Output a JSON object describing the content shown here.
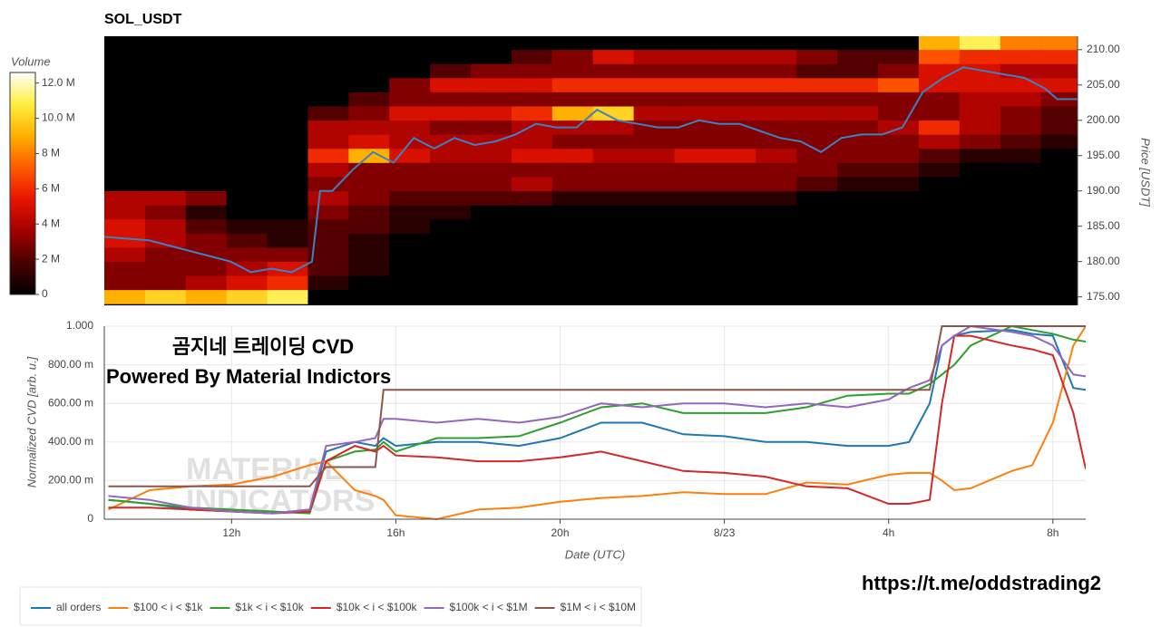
{
  "chart_data": [
    {
      "type": "heatmap",
      "title": "SOL_USDT",
      "y_label": "Price [USDT]",
      "colorbar_label": "Volume",
      "xlim": [
        8.9,
        32.8
      ],
      "ylim": [
        173.8,
        211.9
      ],
      "yticks": [
        {
          "value": 175,
          "label": "175.00"
        },
        {
          "value": 180,
          "label": "180.00"
        },
        {
          "value": 185,
          "label": "185.00"
        },
        {
          "value": 190,
          "label": "190.00"
        },
        {
          "value": 195,
          "label": "195.00"
        },
        {
          "value": 200,
          "label": "200.00"
        },
        {
          "value": 205,
          "label": "205.00"
        },
        {
          "value": 210,
          "label": "210.00"
        }
      ],
      "clim": [
        0,
        12.6
      ],
      "cticks": [
        0,
        {
          "value": 2,
          "label": "2 M"
        },
        {
          "value": 4,
          "label": "4 M"
        },
        {
          "value": 6,
          "label": "6 M"
        },
        {
          "value": 8,
          "label": "8 M"
        },
        {
          "value": 10,
          "label": "10.0 M"
        },
        {
          "value": 12,
          "label": "12.0 M"
        }
      ],
      "colorscale": [
        "#000000",
        "#4a0000",
        "#a00000",
        "#e81400",
        "#ff5a00",
        "#ffb000",
        "#ffee40",
        "#ffffff"
      ],
      "x_bins": [
        8.9,
        9.9,
        10.9,
        11.9,
        12.9,
        13.9,
        14.9,
        15.9,
        16.9,
        17.9,
        18.9,
        19.9,
        20.9,
        21.9,
        22.9,
        23.9,
        24.9,
        25.9,
        26.9,
        27.9,
        28.9,
        29.9,
        30.9,
        31.9,
        32.8
      ],
      "y_bins": [
        174,
        176,
        178,
        180,
        182,
        184,
        186,
        188,
        190,
        192,
        194,
        196,
        198,
        200,
        202,
        204,
        206,
        208,
        210,
        212
      ],
      "z": [
        [
          9,
          10,
          9,
          10,
          11,
          0,
          0,
          0,
          0,
          0,
          0,
          0,
          0,
          0,
          0,
          0,
          0,
          0,
          0,
          0,
          0,
          0,
          0,
          0
        ],
        [
          3,
          3,
          4,
          5,
          6,
          1,
          0,
          0,
          0,
          0,
          0,
          0,
          0,
          0,
          0,
          0,
          0,
          0,
          0,
          0,
          0,
          0,
          0,
          0
        ],
        [
          3,
          3,
          3,
          4,
          5,
          2,
          1,
          0,
          0,
          0,
          0,
          0,
          0,
          0,
          0,
          0,
          0,
          0,
          0,
          0,
          0,
          0,
          0,
          0
        ],
        [
          4,
          3,
          3,
          3,
          3,
          2,
          1,
          0,
          0,
          0,
          0,
          0,
          0,
          0,
          0,
          0,
          0,
          0,
          0,
          0,
          0,
          0,
          0,
          0
        ],
        [
          5,
          4,
          3,
          2,
          1,
          2,
          1,
          0,
          0,
          0,
          0,
          0,
          0,
          0,
          0,
          0,
          0,
          0,
          0,
          0,
          0,
          0,
          0,
          0
        ],
        [
          5,
          4,
          2,
          1,
          1,
          2,
          2,
          1,
          0,
          0,
          0,
          0,
          0,
          0,
          0,
          0,
          0,
          0,
          0,
          0,
          0,
          0,
          0,
          0
        ],
        [
          4,
          3,
          1,
          0,
          0,
          3,
          2,
          1,
          1,
          0,
          0,
          0,
          0,
          0,
          0,
          0,
          0,
          0,
          0,
          0,
          0,
          0,
          0,
          0
        ],
        [
          4,
          4,
          3,
          0,
          0,
          4,
          3,
          2,
          2,
          2,
          2,
          1,
          1,
          1,
          1,
          1,
          1,
          0,
          0,
          0,
          0,
          0,
          0,
          0
        ],
        [
          0,
          0,
          0,
          0,
          0,
          3,
          3,
          3,
          3,
          3,
          4,
          3,
          3,
          3,
          3,
          3,
          3,
          2,
          1,
          1,
          0,
          0,
          0,
          0
        ],
        [
          0,
          0,
          0,
          0,
          0,
          4,
          3,
          3,
          3,
          3,
          3,
          3,
          3,
          3,
          3,
          3,
          3,
          3,
          2,
          2,
          1,
          0,
          0,
          0
        ],
        [
          0,
          0,
          0,
          0,
          0,
          6,
          9,
          5,
          4,
          4,
          5,
          5,
          4,
          4,
          5,
          5,
          4,
          3,
          3,
          3,
          2,
          1,
          1,
          0
        ],
        [
          0,
          0,
          0,
          0,
          0,
          4,
          5,
          4,
          4,
          4,
          4,
          3,
          3,
          3,
          3,
          3,
          3,
          3,
          3,
          3,
          4,
          3,
          2,
          1
        ],
        [
          0,
          0,
          0,
          0,
          0,
          4,
          4,
          4,
          3,
          3,
          4,
          4,
          4,
          3,
          3,
          3,
          3,
          3,
          3,
          4,
          6,
          4,
          3,
          2
        ],
        [
          0,
          0,
          0,
          0,
          0,
          2,
          3,
          5,
          5,
          5,
          6,
          9,
          10,
          4,
          4,
          4,
          4,
          4,
          4,
          3,
          3,
          4,
          3,
          2
        ],
        [
          0,
          0,
          0,
          0,
          0,
          0,
          2,
          3,
          3,
          3,
          3,
          3,
          3,
          3,
          3,
          3,
          3,
          3,
          3,
          3,
          3,
          4,
          4,
          3
        ],
        [
          0,
          0,
          0,
          0,
          0,
          0,
          0,
          3,
          5,
          5,
          5,
          6,
          6,
          6,
          6,
          6,
          6,
          6,
          6,
          7,
          5,
          5,
          5,
          5
        ],
        [
          0,
          0,
          0,
          0,
          0,
          0,
          0,
          0,
          2,
          3,
          3,
          3,
          3,
          3,
          3,
          3,
          3,
          2,
          2,
          3,
          5,
          5,
          4,
          4
        ],
        [
          0,
          0,
          0,
          0,
          0,
          0,
          0,
          0,
          0,
          0,
          2,
          3,
          5,
          4,
          4,
          4,
          4,
          3,
          2,
          2,
          7,
          6,
          6,
          6
        ],
        [
          0,
          0,
          0,
          0,
          0,
          0,
          0,
          0,
          0,
          0,
          0,
          0,
          0,
          0,
          0,
          0,
          0,
          0,
          0,
          0,
          9,
          11,
          8,
          8
        ]
      ],
      "series": [
        {
          "color": "#3b82c4",
          "x": [
            8.9,
            10,
            11,
            12,
            12.5,
            13,
            13.5,
            14,
            14.2,
            14.5,
            15,
            15.5,
            16,
            16.5,
            17,
            17.5,
            18,
            18.5,
            19,
            19.5,
            20,
            20.5,
            21,
            21.5,
            22,
            22.5,
            23,
            23.5,
            24,
            24.5,
            25,
            25.5,
            26,
            26.5,
            27,
            27.5,
            28,
            28.5,
            29,
            29.5,
            30,
            30.5,
            31,
            31.5,
            32,
            32.3,
            32.8
          ],
          "values": [
            183.5,
            183,
            181.5,
            180,
            178.5,
            179,
            178.5,
            180,
            190,
            190,
            193,
            195.5,
            194,
            197.5,
            196,
            197.5,
            196.5,
            197,
            198,
            199.5,
            199,
            199,
            201.5,
            200,
            199.5,
            199,
            199,
            200,
            199.5,
            199.5,
            198.5,
            197.5,
            197,
            195.5,
            197.5,
            198,
            198,
            199,
            204,
            206,
            207.5,
            207,
            206.5,
            206,
            204.5,
            203,
            203
          ]
        }
      ]
    },
    {
      "type": "line",
      "x_label": "Date (UTC)",
      "y_label": "Normalized CVD [arb. u.]",
      "xlim": [
        8.9,
        32.8
      ],
      "ylim": [
        0,
        1
      ],
      "grid": true,
      "xticks": [
        {
          "value": 12,
          "label": "12h"
        },
        {
          "value": 16,
          "label": "16h"
        },
        {
          "value": 20,
          "label": "20h"
        },
        {
          "value": 24,
          "label": "8/23"
        },
        {
          "value": 28,
          "label": "4h"
        },
        {
          "value": 32,
          "label": "8h"
        }
      ],
      "yticks": [
        0,
        {
          "value": 0.2,
          "label": "200.00 m"
        },
        {
          "value": 0.4,
          "label": "400.00 m"
        },
        {
          "value": 0.6,
          "label": "600.00 m"
        },
        {
          "value": 0.8,
          "label": "800.00 m"
        },
        {
          "value": 1,
          "label": "1.000"
        }
      ],
      "annotations": [
        "곰지네 트레이딩 CVD",
        "Powered By Material Indictors",
        "https://t.me/oddstrading2"
      ],
      "watermark": [
        "MATERIAL",
        "INDICATORS"
      ],
      "x": [
        9,
        10,
        11,
        12,
        13,
        13.9,
        14.3,
        15,
        15.5,
        15.7,
        16,
        17,
        18,
        19,
        20,
        21,
        22,
        23,
        24,
        25,
        26,
        27,
        28,
        28.5,
        29,
        29.3,
        29.6,
        30,
        31,
        31.5,
        32,
        32.5,
        32.8
      ],
      "series": [
        {
          "name": "all orders",
          "color": "#1f77b4",
          "values": [
            0.1,
            0.08,
            0.05,
            0.04,
            0.03,
            0.05,
            0.35,
            0.4,
            0.38,
            0.42,
            0.38,
            0.4,
            0.4,
            0.38,
            0.42,
            0.5,
            0.5,
            0.44,
            0.43,
            0.4,
            0.4,
            0.38,
            0.38,
            0.4,
            0.6,
            0.9,
            0.95,
            0.97,
            0.98,
            0.96,
            0.95,
            0.68,
            0.67
          ]
        },
        {
          "name": "$100 < i < $1k",
          "color": "#ff7f0e",
          "values": [
            0.05,
            0.15,
            0.17,
            0.18,
            0.22,
            0.28,
            0.3,
            0.15,
            0.12,
            0.1,
            0.02,
            0.0,
            0.05,
            0.06,
            0.09,
            0.11,
            0.12,
            0.14,
            0.13,
            0.13,
            0.19,
            0.18,
            0.23,
            0.24,
            0.24,
            0.2,
            0.15,
            0.16,
            0.25,
            0.28,
            0.5,
            0.9,
            1.0
          ]
        },
        {
          "name": "$1k < i < $10k",
          "color": "#2ca02c",
          "values": [
            0.1,
            0.08,
            0.06,
            0.05,
            0.04,
            0.03,
            0.3,
            0.35,
            0.36,
            0.4,
            0.35,
            0.42,
            0.42,
            0.43,
            0.5,
            0.58,
            0.6,
            0.55,
            0.55,
            0.55,
            0.58,
            0.64,
            0.65,
            0.65,
            0.7,
            0.75,
            0.8,
            0.9,
            1.0,
            0.98,
            0.96,
            0.93,
            0.92
          ]
        },
        {
          "name": "$10k < i < $100k",
          "color": "#d62728",
          "values": [
            0.06,
            0.06,
            0.05,
            0.04,
            0.03,
            0.04,
            0.3,
            0.38,
            0.35,
            0.38,
            0.33,
            0.32,
            0.3,
            0.3,
            0.32,
            0.35,
            0.3,
            0.25,
            0.24,
            0.22,
            0.17,
            0.16,
            0.08,
            0.08,
            0.1,
            0.6,
            0.95,
            0.95,
            0.9,
            0.88,
            0.85,
            0.55,
            0.26
          ]
        },
        {
          "name": "$100k < i < $1M",
          "color": "#9467bd",
          "values": [
            0.12,
            0.1,
            0.06,
            0.04,
            0.03,
            0.05,
            0.38,
            0.4,
            0.42,
            0.52,
            0.52,
            0.5,
            0.52,
            0.5,
            0.53,
            0.6,
            0.58,
            0.6,
            0.6,
            0.58,
            0.6,
            0.58,
            0.62,
            0.68,
            0.72,
            0.9,
            0.95,
            1.0,
            0.97,
            0.95,
            0.9,
            0.75,
            0.74
          ]
        },
        {
          "name": "$1M < i < $10M",
          "color": "#8c564b",
          "values": [
            0.17,
            0.17,
            0.17,
            0.17,
            0.17,
            0.17,
            0.27,
            0.27,
            0.27,
            0.67,
            0.67,
            0.67,
            0.67,
            0.67,
            0.67,
            0.67,
            0.67,
            0.67,
            0.67,
            0.67,
            0.67,
            0.67,
            0.67,
            0.67,
            0.67,
            1.0,
            1.0,
            1.0,
            1.0,
            1.0,
            1.0,
            1.0,
            1.0
          ]
        }
      ]
    }
  ]
}
